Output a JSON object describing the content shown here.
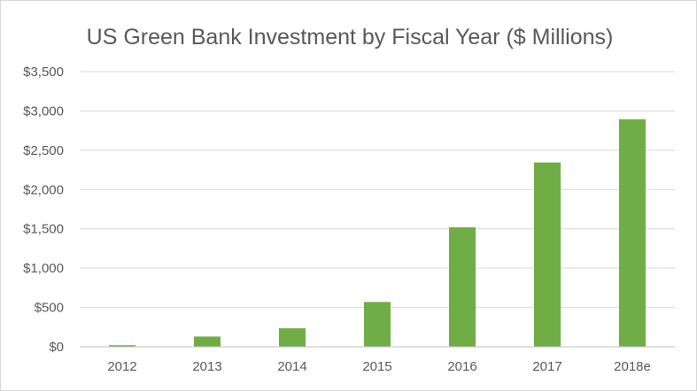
{
  "chart_data": {
    "type": "bar",
    "title": "US Green Bank Investment by Fiscal Year ($ Millions)",
    "xlabel": "",
    "ylabel": "",
    "categories": [
      "2012",
      "2013",
      "2014",
      "2015",
      "2016",
      "2017",
      "2018e"
    ],
    "values": [
      20,
      130,
      235,
      570,
      1520,
      2345,
      2895
    ],
    "ylim": [
      0,
      3500
    ],
    "yticks": [
      0,
      500,
      1000,
      1500,
      2000,
      2500,
      3000,
      3500
    ],
    "ytick_labels": [
      "$0",
      "$500",
      "$1,000",
      "$1,500",
      "$2,000",
      "$2,500",
      "$3,000",
      "$3,500"
    ],
    "grid": true,
    "legend": "none",
    "bar_color": "#70ad47"
  }
}
